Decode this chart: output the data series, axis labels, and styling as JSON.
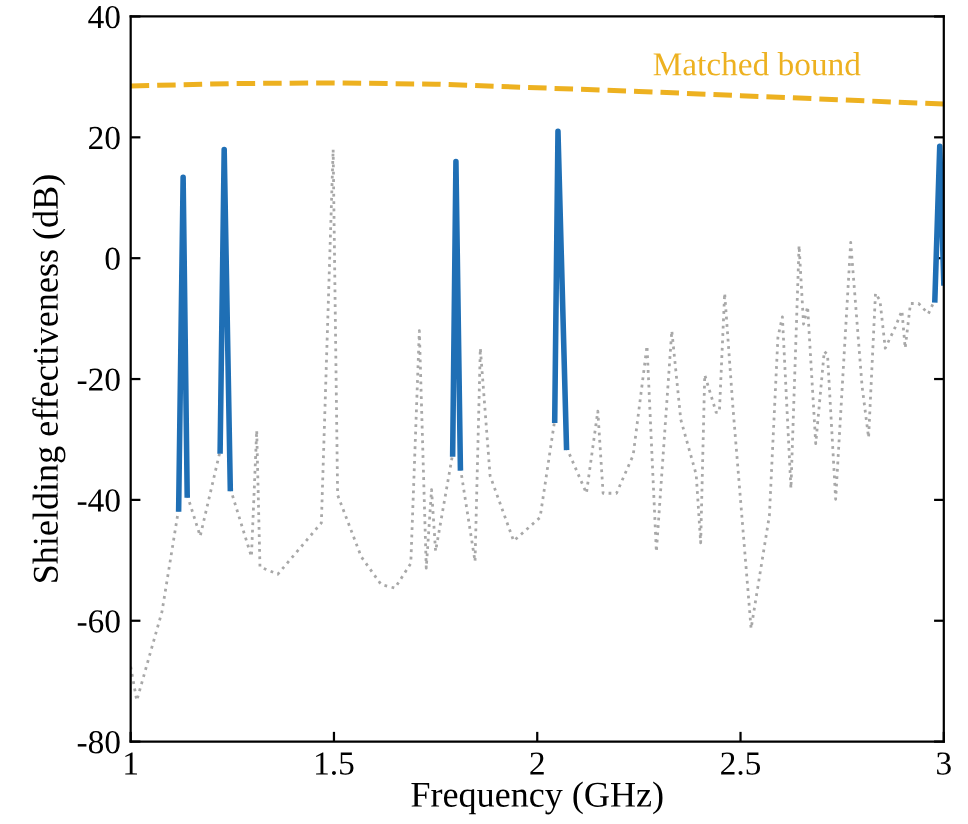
{
  "chart_data": {
    "type": "line",
    "xlabel": "Frequency (GHz)",
    "ylabel": "Shielding effectiveness (dB)",
    "xlim": [
      1,
      3
    ],
    "ylim": [
      -80,
      40
    ],
    "xticks": [
      1,
      1.5,
      2,
      2.5,
      3
    ],
    "yticks": [
      -80,
      -60,
      -40,
      -20,
      0,
      20,
      40
    ],
    "grid": false,
    "legend": false,
    "series": [
      {
        "color": "#a8a8a8",
        "line_style": "dotted",
        "x": [
          1.0,
          1.015,
          1.077,
          1.118,
          1.129,
          1.139,
          1.171,
          1.22,
          1.23,
          1.245,
          1.297,
          1.31,
          1.318,
          1.362,
          1.469,
          1.498,
          1.509,
          1.567,
          1.616,
          1.65,
          1.689,
          1.71,
          1.727,
          1.74,
          1.75,
          1.792,
          1.8,
          1.811,
          1.847,
          1.86,
          1.884,
          1.942,
          2.007,
          2.043,
          2.051,
          2.072,
          2.121,
          2.149,
          2.162,
          2.195,
          2.236,
          2.27,
          2.293,
          2.331,
          2.353,
          2.391,
          2.402,
          2.412,
          2.44,
          2.448,
          2.461,
          2.481,
          2.526,
          2.571,
          2.592,
          2.603,
          2.624,
          2.644,
          2.655,
          2.665,
          2.685,
          2.706,
          2.714,
          2.734,
          2.771,
          2.799,
          2.815,
          2.832,
          2.843,
          2.856,
          2.88,
          2.897,
          2.905,
          2.918,
          2.938,
          2.962,
          2.978,
          2.99,
          3.0
        ],
        "values": [
          -67.6,
          -73.2,
          -58.5,
          -41.5,
          null,
          -39.2,
          -46.0,
          -31.9,
          null,
          -38.1,
          -49.4,
          -28.5,
          -51.1,
          -52.3,
          -43.8,
          18.0,
          -39.2,
          -49.4,
          -54.0,
          -54.6,
          -50.5,
          -12.0,
          -51.3,
          -38.3,
          -48.5,
          -32.4,
          null,
          -34.7,
          -50.2,
          -14.9,
          -36.0,
          -46.8,
          -42.9,
          -26.8,
          null,
          -31.3,
          -38.9,
          -25.3,
          -38.9,
          -38.9,
          -32.6,
          -14.5,
          -48.6,
          -12.0,
          -26.7,
          -35.8,
          -47.1,
          -19.3,
          -25.5,
          -25.5,
          -5.8,
          -24.4,
          -61.3,
          -42.6,
          -13.1,
          -9.7,
          -38.1,
          2.1,
          -10.9,
          -8.0,
          -30.7,
          -15.4,
          -16.0,
          -39.9,
          2.6,
          -21.2,
          -29.7,
          -5.8,
          -7.0,
          -14.9,
          -11.5,
          -8.7,
          -14.9,
          -7.5,
          -7.5,
          -9.2,
          -6.9,
          18.5,
          -4.1
        ]
      },
      {
        "color": "#1f6fb5",
        "line_style": "solid",
        "x": [
          1.118,
          1.129,
          1.139,
          1.18,
          1.22,
          1.23,
          1.245,
          1.5,
          1.792,
          1.8,
          1.811,
          1.9,
          2.043,
          2.051,
          2.072,
          2.5,
          2.978,
          2.99,
          3.0
        ],
        "values": [
          -41.5,
          13.4,
          -39.2,
          null,
          -31.9,
          18.0,
          -38.1,
          null,
          -32.4,
          16.0,
          -34.7,
          null,
          -26.8,
          21.0,
          -31.3,
          null,
          -6.9,
          18.5,
          -4.1
        ]
      },
      {
        "color": "#edb120",
        "line_style": "dashed",
        "x": [
          1.0,
          1.25,
          1.5,
          1.75,
          2.0,
          2.25,
          2.5,
          2.75,
          3.0
        ],
        "values": [
          28.5,
          28.9,
          29.0,
          28.8,
          28.2,
          27.6,
          26.9,
          26.2,
          25.5
        ]
      }
    ],
    "annotations": [
      "Matched bound"
    ]
  }
}
